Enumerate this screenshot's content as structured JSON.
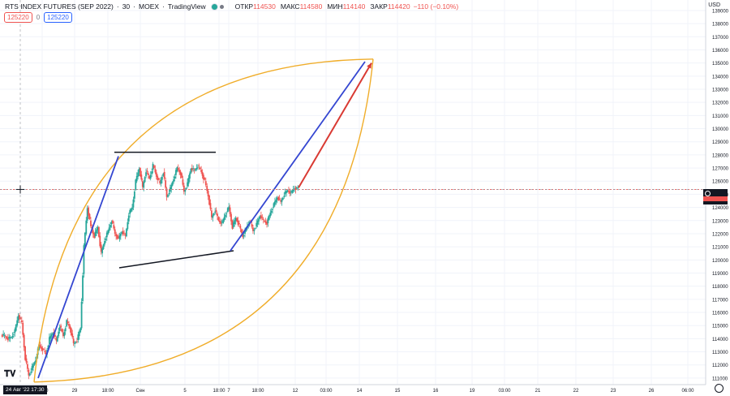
{
  "header": {
    "symbol": "RTS INDEX FUTURES (SEP 2022)",
    "interval": "30",
    "exchange": "MOEX",
    "platform": "TradingView",
    "open_label": "ОТКР",
    "open_value": "114530",
    "high_label": "МАКС",
    "high_value": "114580",
    "low_label": "МИН",
    "low_value": "114140",
    "close_label": "ЗАКР",
    "close_value": "114420",
    "change": "−110 (−0.10%)"
  },
  "orders": {
    "sell": "125220",
    "spread": "0",
    "buy": "125220"
  },
  "currency": "USD",
  "crosshair_date": "24 Авг '22  17:30",
  "price_box": "125370",
  "colors": {
    "up": "#26a69a",
    "down": "#ef5350",
    "drawing_orange": "#f0ad2a",
    "drawing_blue": "#3446d1",
    "drawing_red": "#d93a33",
    "drawing_black": "#131722"
  },
  "chart_data": {
    "type": "candlestick",
    "y_axis": {
      "min": 110500,
      "max": 139800,
      "ticks": [
        111000,
        112000,
        113000,
        114000,
        115000,
        116000,
        117000,
        118000,
        119000,
        120000,
        121000,
        122000,
        123000,
        124000,
        125000,
        126000,
        127000,
        128000,
        129000,
        130000,
        131000,
        132000,
        133000,
        134000,
        135000,
        136000,
        137000,
        138000,
        139000
      ]
    },
    "x_axis": {
      "tick_labels": [
        "13:00",
        "29",
        "18:00",
        "Сен",
        "5",
        "18:00",
        "7",
        "18:00",
        "12",
        "03:00",
        "14",
        "15",
        "16",
        "19",
        "03:00",
        "21",
        "22",
        "23",
        "26",
        "06:00"
      ]
    },
    "current_price": 125370,
    "price_path": [
      114300,
      114200,
      114000,
      114100,
      114600,
      115800,
      115200,
      112500,
      111200,
      111800,
      112400,
      113500,
      113200,
      112800,
      114000,
      114500,
      113800,
      115000,
      114200,
      115300,
      114800,
      113600,
      113900,
      114800,
      121000,
      124000,
      122500,
      121800,
      122500,
      120500,
      121500,
      122200,
      123000,
      122000,
      121600,
      122200,
      121800,
      123500,
      124000,
      126000,
      127000,
      125500,
      126800,
      126200,
      127200,
      126400,
      125800,
      126700,
      124800,
      125400,
      126200,
      127000,
      126600,
      125200,
      125800,
      127000,
      126800,
      127200,
      126700,
      126000,
      124900,
      123200,
      123800,
      123000,
      122800,
      123500,
      124000,
      122500,
      123200,
      122600,
      121800,
      122400,
      123000,
      122200,
      122700,
      123400,
      123000,
      122800,
      123600,
      124200,
      124800,
      124400,
      125000,
      125300,
      125100,
      125500,
      125370
    ]
  },
  "drawings": {
    "arc_upper": {
      "from": [
        "24 Авг",
        110700
      ],
      "to": [
        "14 Сен",
        135300
      ]
    },
    "arc_lower": {
      "from": [
        "24 Авг",
        110700
      ],
      "to": [
        "14 Сен",
        135300
      ]
    },
    "trend_line_1": {
      "from": [
        111000
      ],
      "to": [
        127900
      ]
    },
    "channel_top": {
      "value": 128200
    },
    "channel_bottom": {
      "from": 119400,
      "to": 120700
    },
    "trend_line_2": {
      "from": 120700,
      "to": 135100
    },
    "projection_arrow": {
      "from": 125500,
      "to": 135000
    }
  }
}
